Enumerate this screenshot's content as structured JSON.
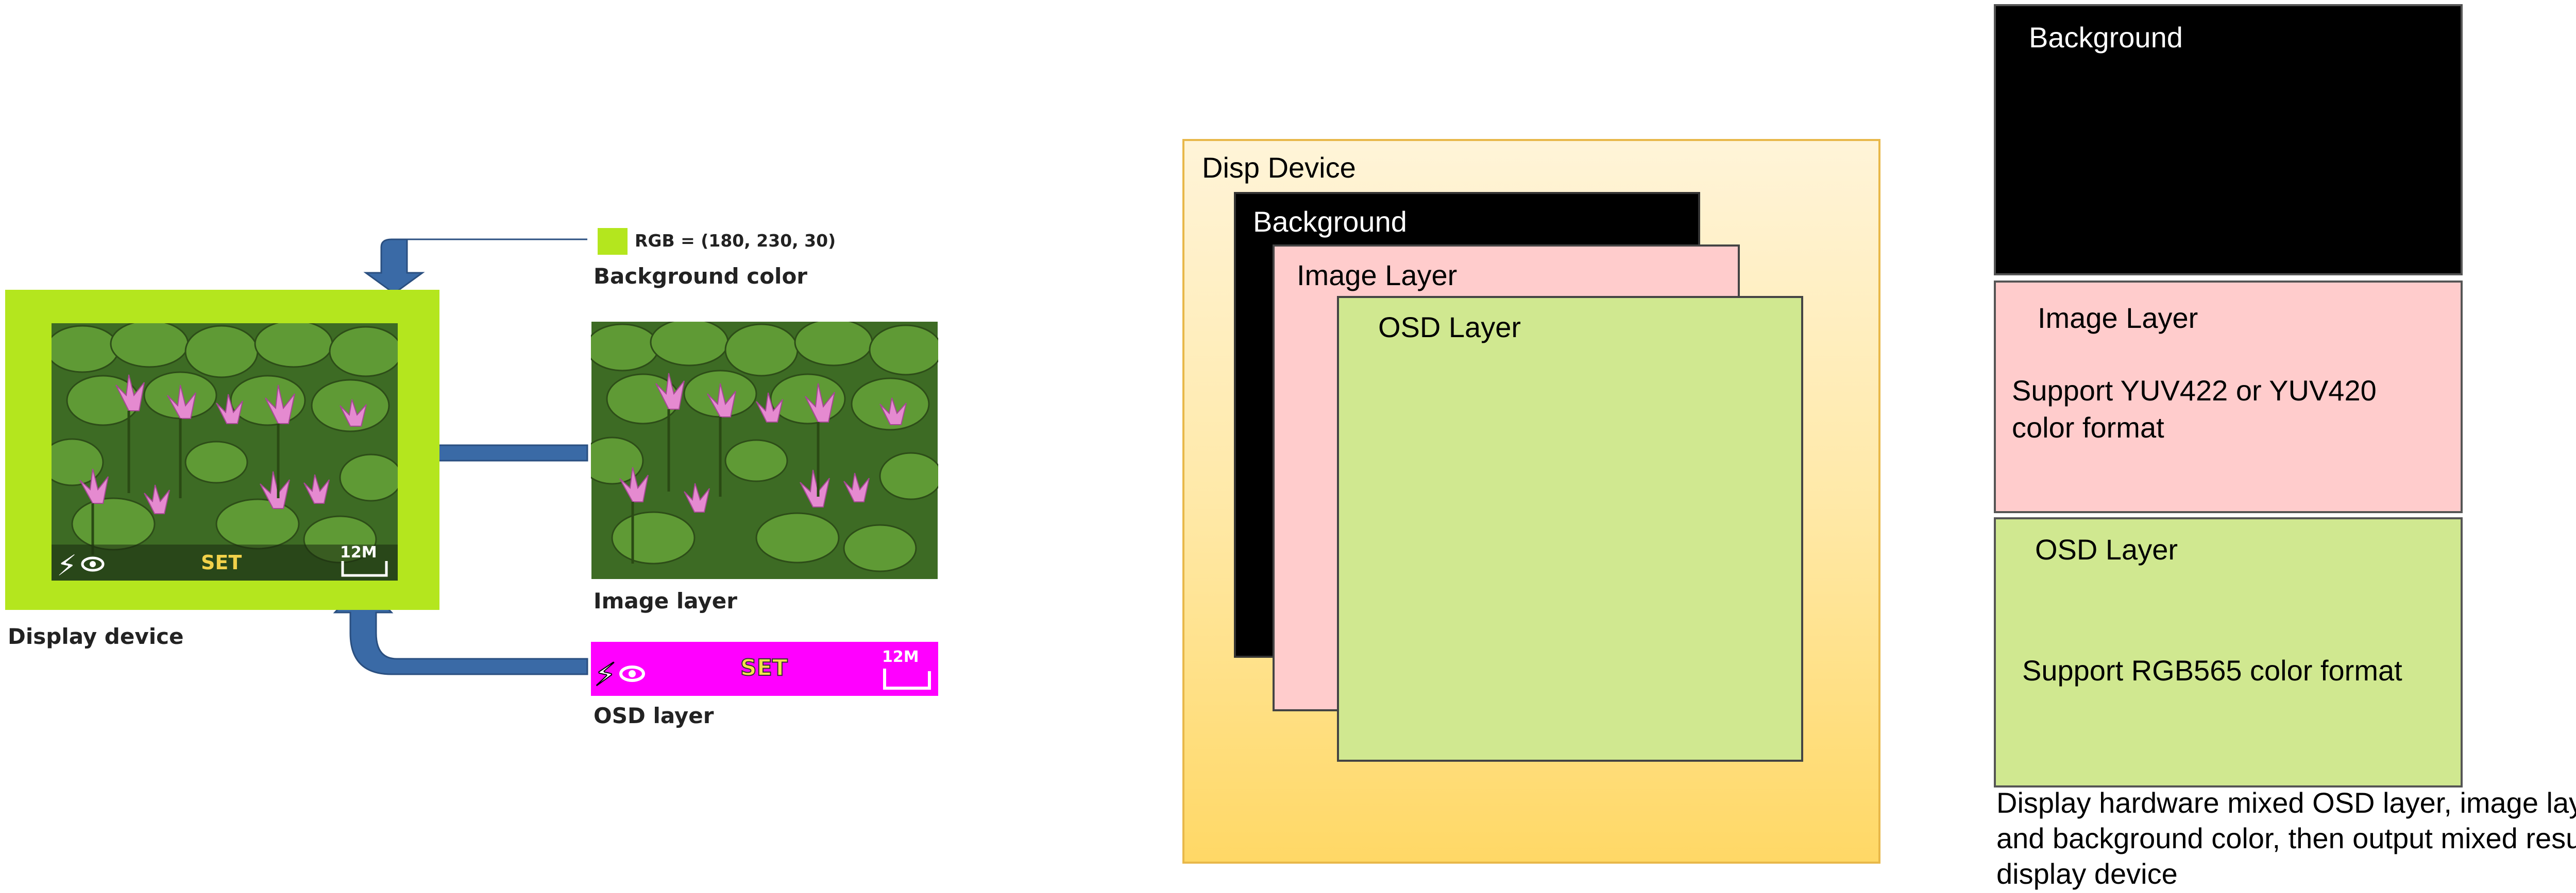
{
  "left": {
    "rgb_label": "RGB = (180, 230, 30)",
    "background_color_label": "Background color",
    "image_layer_label": "Image layer",
    "osd_layer_label": "OSD layer",
    "display_device_label": "Display device",
    "osd_set_text": "SET",
    "osd_12m_text": "12M",
    "colors": {
      "background": "#b4e61e",
      "osd": "#ff00ff",
      "arrow": "#3a6aa6"
    }
  },
  "middle": {
    "disp_device_label": "Disp Device",
    "background_label": "Background",
    "image_layer_label": "Image Layer",
    "osd_layer_label": "OSD Layer"
  },
  "right": {
    "background_label": "Background",
    "image_layer_label": "Image Layer",
    "image_layer_desc": "Support YUV422 or YUV420 color format",
    "osd_layer_label": "OSD Layer",
    "osd_layer_desc": "Support RGB565 color format",
    "caption": "Display hardware mixed OSD layer, image layer and background color, then output mixed result to display device"
  }
}
